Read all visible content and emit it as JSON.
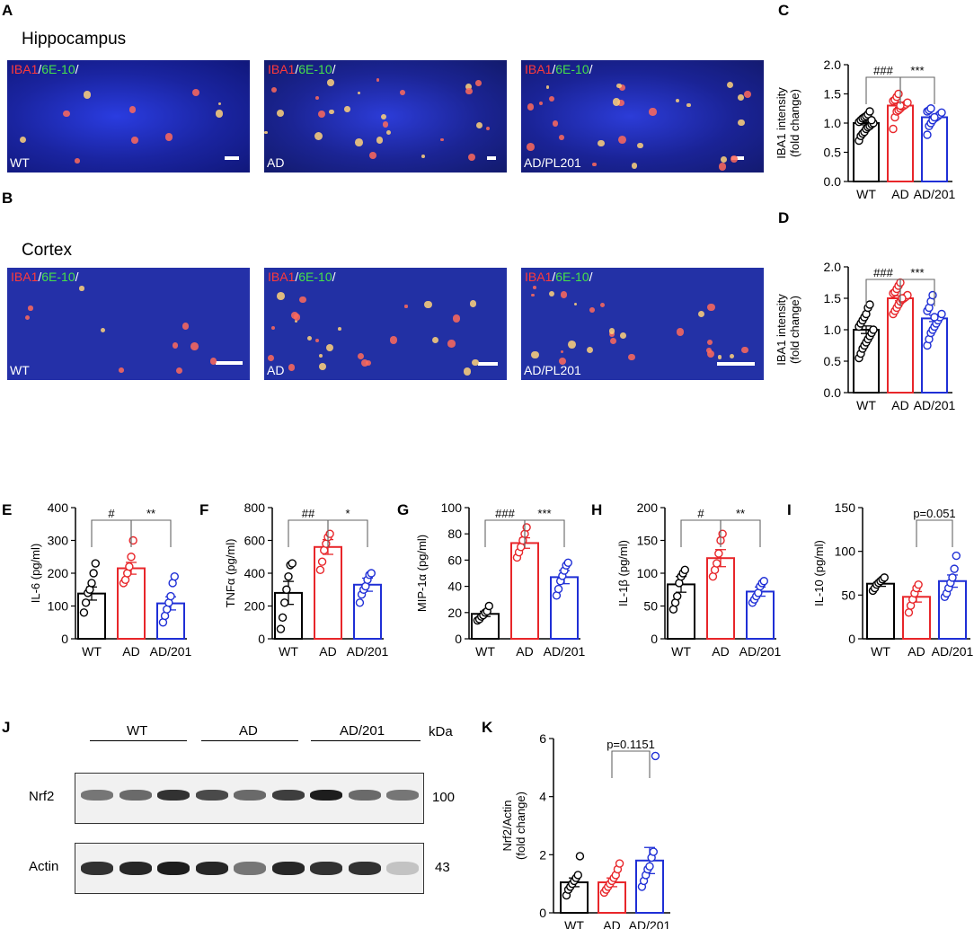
{
  "panel_letters": {
    "A": "A",
    "B": "B",
    "C": "C",
    "D": "D",
    "E": "E",
    "F": "F",
    "G": "G",
    "H": "H",
    "I": "I",
    "J": "J",
    "K": "K"
  },
  "regions": {
    "hippocampus": "Hippocampus",
    "cortex": "Cortex"
  },
  "stain": {
    "iba1": "IBA1",
    "sep1": "/",
    "e610": "6E-10",
    "sep2": "/"
  },
  "micrographs": [
    {
      "group": "WT"
    },
    {
      "group": "AD"
    },
    {
      "group": "AD/PL201"
    },
    {
      "group": "WT"
    },
    {
      "group": "AD"
    },
    {
      "group": "AD/PL201"
    }
  ],
  "colors": {
    "WT": "#000000",
    "AD": "#e8262a",
    "AD/201": "#1f2fd6"
  },
  "chart_data": [
    {
      "panel": "C",
      "type": "bar",
      "ylabel": "IBA1 intensity\n(fold change)",
      "categories": [
        "WT",
        "AD",
        "AD/201"
      ],
      "values": [
        1.0,
        1.3,
        1.1
      ],
      "errors": [
        0.03,
        0.03,
        0.02
      ],
      "ylim": [
        0,
        2.0
      ],
      "yticks": [
        0.0,
        0.5,
        1.0,
        1.5,
        2.0
      ],
      "decimals": 1,
      "points": [
        [
          0.7,
          0.78,
          0.82,
          0.85,
          0.9,
          0.93,
          0.95,
          0.98,
          1.0,
          1.02,
          1.05,
          1.08,
          1.1,
          1.12,
          1.15,
          1.2,
          1.05
        ],
        [
          0.9,
          1.1,
          1.2,
          1.22,
          1.25,
          1.28,
          1.3,
          1.32,
          1.35,
          1.38,
          1.4,
          1.45,
          1.5,
          1.3
        ],
        [
          0.8,
          0.95,
          1.0,
          1.05,
          1.08,
          1.1,
          1.12,
          1.15,
          1.18,
          1.2,
          1.22,
          1.25,
          1.05,
          1.1
        ]
      ],
      "comparisons": [
        {
          "from": 0,
          "to": 1,
          "label": "###"
        },
        {
          "from": 1,
          "to": 2,
          "label": "***"
        }
      ]
    },
    {
      "panel": "D",
      "type": "bar",
      "ylabel": "IBA1 intensity\n(fold change)",
      "categories": [
        "WT",
        "AD",
        "AD/201"
      ],
      "values": [
        1.0,
        1.5,
        1.18
      ],
      "errors": [
        0.06,
        0.04,
        0.05
      ],
      "ylim": [
        0,
        2.0
      ],
      "yticks": [
        0.0,
        0.5,
        1.0,
        1.5,
        2.0
      ],
      "decimals": 1,
      "points": [
        [
          0.55,
          0.62,
          0.7,
          0.75,
          0.8,
          0.85,
          0.9,
          0.95,
          1.0,
          1.05,
          1.1,
          1.15,
          1.2,
          1.25,
          1.35,
          1.4
        ],
        [
          1.25,
          1.3,
          1.35,
          1.4,
          1.45,
          1.48,
          1.5,
          1.52,
          1.55,
          1.58,
          1.6,
          1.65,
          1.7,
          1.75,
          1.5
        ],
        [
          0.75,
          0.85,
          0.95,
          1.0,
          1.05,
          1.1,
          1.15,
          1.2,
          1.25,
          1.3,
          1.35,
          1.45,
          1.55,
          1.2
        ]
      ],
      "comparisons": [
        {
          "from": 0,
          "to": 1,
          "label": "###"
        },
        {
          "from": 1,
          "to": 2,
          "label": "***"
        }
      ]
    },
    {
      "panel": "E",
      "type": "bar",
      "ylabel": "IL-6 (pg/ml)",
      "categories": [
        "WT",
        "AD",
        "AD/201"
      ],
      "values": [
        138,
        215,
        108
      ],
      "errors": [
        20,
        18,
        20
      ],
      "ylim": [
        0,
        400
      ],
      "yticks": [
        0,
        100,
        200,
        300,
        400
      ],
      "decimals": 0,
      "points": [
        [
          80,
          110,
          140,
          150,
          170,
          200,
          230
        ],
        [
          170,
          180,
          200,
          220,
          250,
          300
        ],
        [
          50,
          70,
          90,
          110,
          130,
          170,
          190
        ]
      ],
      "comparisons": [
        {
          "from": 0,
          "to": 1,
          "label": "#"
        },
        {
          "from": 1,
          "to": 2,
          "label": "**"
        }
      ]
    },
    {
      "panel": "F",
      "type": "bar",
      "ylabel": "TNFα (pg/ml)",
      "categories": [
        "WT",
        "AD",
        "AD/201"
      ],
      "values": [
        280,
        560,
        330
      ],
      "errors": [
        70,
        45,
        40
      ],
      "ylim": [
        0,
        800
      ],
      "yticks": [
        0,
        200,
        400,
        600,
        800
      ],
      "decimals": 0,
      "points": [
        [
          60,
          130,
          220,
          300,
          380,
          450,
          460
        ],
        [
          420,
          470,
          540,
          580,
          620,
          640
        ],
        [
          220,
          270,
          300,
          320,
          360,
          390,
          400
        ]
      ],
      "comparisons": [
        {
          "from": 0,
          "to": 1,
          "label": "##"
        },
        {
          "from": 1,
          "to": 2,
          "label": "*"
        }
      ]
    },
    {
      "panel": "G",
      "type": "bar",
      "ylabel": "MIP-1α (pg/ml)",
      "categories": [
        "WT",
        "AD",
        "AD/201"
      ],
      "values": [
        19,
        73,
        47
      ],
      "errors": [
        2,
        4,
        5
      ],
      "ylim": [
        0,
        100
      ],
      "yticks": [
        0,
        20,
        40,
        60,
        80,
        100
      ],
      "decimals": 0,
      "points": [
        [
          14,
          15,
          17,
          18,
          20,
          21,
          25
        ],
        [
          62,
          66,
          70,
          75,
          80,
          85
        ],
        [
          33,
          38,
          44,
          48,
          52,
          56,
          58
        ]
      ],
      "comparisons": [
        {
          "from": 0,
          "to": 1,
          "label": "###"
        },
        {
          "from": 1,
          "to": 2,
          "label": "***"
        }
      ]
    },
    {
      "panel": "H",
      "type": "bar",
      "ylabel": "IL-1β (pg/ml)",
      "categories": [
        "WT",
        "AD",
        "AD/201"
      ],
      "values": [
        83,
        123,
        72
      ],
      "errors": [
        12,
        13,
        7
      ],
      "ylim": [
        0,
        200
      ],
      "yticks": [
        0,
        50,
        100,
        150,
        200
      ],
      "decimals": 0,
      "points": [
        [
          45,
          55,
          65,
          85,
          95,
          100,
          105
        ],
        [
          95,
          105,
          115,
          130,
          150,
          160
        ],
        [
          55,
          60,
          65,
          70,
          80,
          85,
          88
        ]
      ],
      "comparisons": [
        {
          "from": 0,
          "to": 1,
          "label": "#"
        },
        {
          "from": 1,
          "to": 2,
          "label": "**"
        }
      ]
    },
    {
      "panel": "I",
      "type": "bar",
      "ylabel": "IL-10 (pg/ml)",
      "categories": [
        "WT",
        "AD",
        "AD/201"
      ],
      "values": [
        63,
        48,
        66
      ],
      "errors": [
        3,
        6,
        7
      ],
      "ylim": [
        0,
        150
      ],
      "yticks": [
        0,
        50,
        100,
        150
      ],
      "decimals": 0,
      "points": [
        [
          55,
          58,
          62,
          64,
          66,
          68,
          70
        ],
        [
          30,
          38,
          45,
          52,
          58,
          62
        ],
        [
          48,
          52,
          58,
          64,
          70,
          80,
          95
        ]
      ],
      "comparisons": [
        {
          "from": 1,
          "to": 2,
          "label": "p=0.051"
        }
      ]
    },
    {
      "panel": "K",
      "type": "bar",
      "ylabel": "Nrf2/Actin\n(fold change)",
      "categories": [
        "WT",
        "AD",
        "AD/201"
      ],
      "values": [
        1.05,
        1.05,
        1.8
      ],
      "errors": [
        0.15,
        0.15,
        0.45
      ],
      "ylim": [
        0,
        6
      ],
      "yticks": [
        0,
        2,
        4,
        6
      ],
      "decimals": 0,
      "points": [
        [
          0.6,
          0.8,
          0.9,
          1.0,
          1.1,
          1.2,
          1.3,
          1.95
        ],
        [
          0.7,
          0.8,
          0.9,
          1.0,
          1.1,
          1.2,
          1.3,
          1.5,
          1.7
        ],
        [
          0.9,
          1.1,
          1.3,
          1.5,
          1.6,
          1.9,
          2.1,
          5.4
        ]
      ],
      "comparisons": [
        {
          "from": 1,
          "to": 2,
          "label": "p=0.1151"
        }
      ]
    }
  ],
  "blot": {
    "groups": [
      "WT",
      "AD",
      "AD/201"
    ],
    "kda_label": "kDa",
    "rows": [
      {
        "label": "Nrf2",
        "kda": "100"
      },
      {
        "label": "Actin",
        "kda": "43"
      }
    ]
  }
}
